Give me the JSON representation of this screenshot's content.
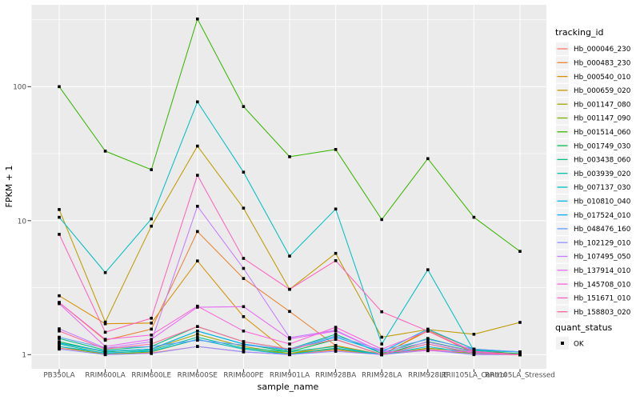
{
  "chart_data": {
    "type": "line",
    "title": "",
    "xlabel": "sample_name",
    "ylabel": "FPKM + 1",
    "y_scale": "log10",
    "ylim": [
      0.78,
      420
    ],
    "grid": true,
    "panel_bg": "#EBEBEB",
    "grid_color": "#FFFFFF",
    "point_color": "#000000",
    "tick_text_color": "#4d4d4d",
    "legend_key_bg": "#F2F2F2",
    "x_categories": [
      "PB350LA",
      "RRIM600LA",
      "RRIM600LE",
      "RRIM600SE",
      "RRIM600PE",
      "RRIM901LA",
      "RRIM928BA",
      "RRIM928LA",
      "RRIM928LE",
      "RRII105LA_Control",
      "RRII105LA_Stressed"
    ],
    "y_ticks": [
      {
        "label": "1",
        "value": 1
      },
      {
        "label": "10",
        "value": 10
      },
      {
        "label": "100",
        "value": 100
      }
    ],
    "y_minor_ticks": [
      3.162,
      31.62,
      316.2
    ],
    "legend_title": "tracking_id",
    "legend2_title": "quant_status",
    "legend2_items": [
      {
        "label": "OK"
      }
    ],
    "series": [
      {
        "name": "Hb_000046_230",
        "color": "#F8766D",
        "values": [
          1.12,
          1.02,
          1.03,
          1.15,
          1.05,
          1.0,
          1.08,
          1.0,
          1.1,
          1.02,
          1.0
        ]
      },
      {
        "name": "Hb_000483_230",
        "color": "#EA8331",
        "values": [
          2.45,
          1.28,
          1.55,
          8.3,
          3.7,
          2.1,
          1.17,
          1.0,
          1.5,
          1.03,
          1.0
        ]
      },
      {
        "name": "Hb_000540_010",
        "color": "#D89000",
        "values": [
          2.75,
          1.7,
          1.72,
          5.0,
          1.92,
          1.02,
          1.17,
          1.0,
          1.52,
          1.1,
          1.0
        ]
      },
      {
        "name": "Hb_000659_020",
        "color": "#C09B00",
        "values": [
          12.1,
          1.75,
          9.1,
          36,
          12.4,
          3.07,
          5.7,
          1.35,
          1.54,
          1.42,
          1.74
        ]
      },
      {
        "name": "Hb_001147_080",
        "color": "#A3A500",
        "values": [
          1.22,
          1.05,
          1.1,
          1.42,
          1.15,
          1.02,
          1.12,
          1.0,
          1.08,
          1.02,
          1.0
        ]
      },
      {
        "name": "Hb_001147_090",
        "color": "#7CAE00",
        "values": [
          1.15,
          1.0,
          1.05,
          1.3,
          1.1,
          1.02,
          1.1,
          1.0,
          1.12,
          1.05,
          1.0
        ]
      },
      {
        "name": "Hb_001514_060",
        "color": "#39B600",
        "values": [
          100,
          33,
          24,
          320,
          71,
          30,
          34,
          10.2,
          29,
          10.6,
          5.9
        ]
      },
      {
        "name": "Hb_001749_030",
        "color": "#00BB4E",
        "values": [
          1.25,
          1.05,
          1.1,
          1.5,
          1.2,
          1.05,
          1.3,
          1.0,
          1.25,
          1.06,
          1.02
        ]
      },
      {
        "name": "Hb_003438_060",
        "color": "#00BF7D",
        "values": [
          1.32,
          1.08,
          1.15,
          1.62,
          1.25,
          1.1,
          1.42,
          1.02,
          1.32,
          1.08,
          1.05
        ]
      },
      {
        "name": "Hb_003939_020",
        "color": "#00C1A3",
        "values": [
          1.2,
          1.02,
          1.08,
          1.35,
          1.12,
          1.05,
          1.15,
          1.0,
          1.2,
          1.03,
          1.0
        ]
      },
      {
        "name": "Hb_007137_030",
        "color": "#00BFC4",
        "values": [
          10.6,
          4.1,
          10.3,
          77,
          23,
          5.44,
          12.2,
          1.2,
          4.3,
          1.07,
          1.05
        ]
      },
      {
        "name": "Hb_010810_040",
        "color": "#00BAE0",
        "values": [
          1.15,
          1.03,
          1.06,
          1.3,
          1.1,
          1.0,
          1.12,
          1.0,
          1.15,
          1.02,
          1.0
        ]
      },
      {
        "name": "Hb_017524_010",
        "color": "#00B0F6",
        "values": [
          1.22,
          1.06,
          1.1,
          1.5,
          1.2,
          1.08,
          1.35,
          1.05,
          1.55,
          1.1,
          1.05
        ]
      },
      {
        "name": "Hb_048476_160",
        "color": "#619CFF",
        "values": [
          1.35,
          1.12,
          1.15,
          1.28,
          1.18,
          1.1,
          1.38,
          1.08,
          1.3,
          1.1,
          1.05
        ]
      },
      {
        "name": "Hb_102129_010",
        "color": "#9590FF",
        "values": [
          1.1,
          1.0,
          1.02,
          1.15,
          1.05,
          1.0,
          1.06,
          1.0,
          1.08,
          1.0,
          1.0
        ]
      },
      {
        "name": "Hb_107495_050",
        "color": "#C77CFF",
        "values": [
          1.56,
          1.12,
          1.25,
          12.8,
          4.4,
          1.34,
          1.52,
          1.05,
          1.24,
          1.05,
          1.0
        ]
      },
      {
        "name": "Hb_137914_010",
        "color": "#E76BF3",
        "values": [
          2.4,
          1.15,
          1.3,
          2.26,
          2.28,
          1.31,
          1.5,
          1.05,
          1.07,
          1.05,
          1.0
        ]
      },
      {
        "name": "Hb_145708_010",
        "color": "#FA62DB",
        "values": [
          2.45,
          1.3,
          1.4,
          2.3,
          1.5,
          1.2,
          1.6,
          1.1,
          1.5,
          1.06,
          1.0
        ]
      },
      {
        "name": "Hb_151671_010",
        "color": "#FF62BC",
        "values": [
          7.9,
          1.47,
          1.87,
          21.8,
          5.23,
          3.07,
          5.03,
          2.09,
          1.5,
          1.05,
          1.0
        ]
      },
      {
        "name": "Hb_158803_020",
        "color": "#FF6A98",
        "values": [
          1.5,
          1.1,
          1.2,
          1.62,
          1.25,
          1.1,
          1.3,
          1.0,
          1.2,
          1.02,
          1.0
        ]
      }
    ]
  }
}
